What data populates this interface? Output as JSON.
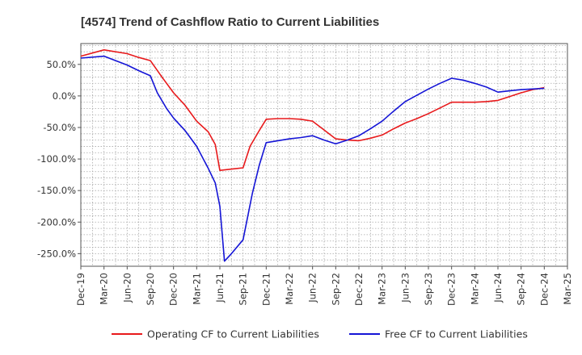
{
  "chart_data": {
    "type": "line",
    "title": "[4574]  Trend of Cashflow Ratio to Current Liabilities",
    "xlabel": "",
    "ylabel": "",
    "x_tick_labels": [
      "Dec-19",
      "Mar-20",
      "Jun-20",
      "Sep-20",
      "Dec-20",
      "Mar-21",
      "Jun-21",
      "Sep-21",
      "Dec-21",
      "Mar-22",
      "Jun-22",
      "Sep-22",
      "Dec-22",
      "Mar-23",
      "Jun-23",
      "Sep-23",
      "Dec-23",
      "Mar-24",
      "Jun-24",
      "Sep-24",
      "Dec-24",
      "Mar-25"
    ],
    "y_tick_labels": [
      "50.0%",
      "0.0%",
      "-50.0%",
      "-100.0%",
      "-150.0%",
      "-200.0%",
      "-250.0%"
    ],
    "y_tick_values": [
      50,
      0,
      -50,
      -100,
      -150,
      -200,
      -250
    ],
    "ylim": [
      -270,
      83
    ],
    "xlim": [
      0,
      21
    ],
    "grid": true,
    "legend_position": "bottom",
    "series": [
      {
        "name": "Operating CF to Current Liabilities",
        "color": "#e8191b",
        "points": [
          [
            0,
            63
          ],
          [
            1,
            73
          ],
          [
            2,
            67
          ],
          [
            2.5,
            61
          ],
          [
            3,
            56
          ],
          [
            3.5,
            30
          ],
          [
            4,
            5
          ],
          [
            4.5,
            -15
          ],
          [
            4.8,
            -30
          ],
          [
            5,
            -40
          ],
          [
            5.5,
            -57
          ],
          [
            5.8,
            -77
          ],
          [
            6,
            -118
          ],
          [
            6.5,
            -116
          ],
          [
            7,
            -114
          ],
          [
            7.3,
            -80
          ],
          [
            7.7,
            -55
          ],
          [
            8,
            -37
          ],
          [
            8.5,
            -36
          ],
          [
            9,
            -36
          ],
          [
            9.5,
            -37
          ],
          [
            10,
            -40
          ],
          [
            10.5,
            -54
          ],
          [
            11,
            -68
          ],
          [
            11.5,
            -70
          ],
          [
            12,
            -71
          ],
          [
            12.5,
            -67
          ],
          [
            13,
            -62
          ],
          [
            13.5,
            -52
          ],
          [
            14,
            -43
          ],
          [
            14.5,
            -36
          ],
          [
            15,
            -28
          ],
          [
            15.5,
            -19
          ],
          [
            16,
            -10
          ],
          [
            16.5,
            -10
          ],
          [
            17,
            -10
          ],
          [
            17.5,
            -9
          ],
          [
            18,
            -7
          ],
          [
            18.5,
            -1
          ],
          [
            19,
            5
          ],
          [
            19.5,
            10
          ],
          [
            20,
            13
          ]
        ]
      },
      {
        "name": "Free CF to Current Liabilities",
        "color": "#1414d6",
        "points": [
          [
            0,
            60
          ],
          [
            1,
            63
          ],
          [
            2,
            49
          ],
          [
            2.5,
            40
          ],
          [
            3,
            32
          ],
          [
            3.3,
            5
          ],
          [
            3.7,
            -20
          ],
          [
            4,
            -35
          ],
          [
            4.5,
            -55
          ],
          [
            5,
            -80
          ],
          [
            5.5,
            -115
          ],
          [
            5.8,
            -138
          ],
          [
            6,
            -175
          ],
          [
            6.2,
            -262
          ],
          [
            6.5,
            -250
          ],
          [
            7,
            -228
          ],
          [
            7.4,
            -155
          ],
          [
            7.7,
            -110
          ],
          [
            8,
            -74
          ],
          [
            8.5,
            -71
          ],
          [
            9,
            -68
          ],
          [
            9.5,
            -66
          ],
          [
            10,
            -63
          ],
          [
            10.5,
            -70
          ],
          [
            11,
            -76
          ],
          [
            11.5,
            -70
          ],
          [
            12,
            -63
          ],
          [
            12.5,
            -52
          ],
          [
            13,
            -40
          ],
          [
            13.5,
            -24
          ],
          [
            14,
            -9
          ],
          [
            14.5,
            1
          ],
          [
            15,
            11
          ],
          [
            15.5,
            20
          ],
          [
            16,
            28
          ],
          [
            16.5,
            25
          ],
          [
            17,
            20
          ],
          [
            17.5,
            14
          ],
          [
            18,
            6
          ],
          [
            18.5,
            8
          ],
          [
            19,
            10
          ],
          [
            19.5,
            11
          ],
          [
            20,
            12
          ]
        ]
      }
    ]
  }
}
